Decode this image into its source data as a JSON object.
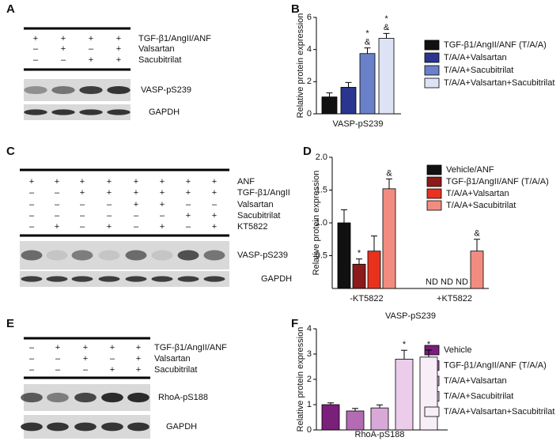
{
  "panel_letters": [
    "A",
    "B",
    "C",
    "D",
    "E",
    "F"
  ],
  "blots": [
    {
      "treatments": [
        {
          "label": "TGF-β1/AngII/ANF",
          "signs": [
            "+",
            "+",
            "+",
            "+"
          ]
        },
        {
          "label": "Valsartan",
          "signs": [
            "–",
            "+",
            "–",
            "+"
          ]
        },
        {
          "label": "Sacubitrilat",
          "signs": [
            "–",
            "–",
            "+",
            "+"
          ]
        }
      ],
      "bands": [
        "VASP-pS239",
        "GAPDH"
      ]
    },
    {
      "treatments": [
        {
          "label": "ANF",
          "signs": [
            "+",
            "+",
            "+",
            "+",
            "+",
            "+",
            "+",
            "+"
          ]
        },
        {
          "label": "TGF-β1/AngII",
          "signs": [
            "–",
            "–",
            "+",
            "+",
            "+",
            "+",
            "+",
            "+"
          ]
        },
        {
          "label": "Valsartan",
          "signs": [
            "–",
            "–",
            "–",
            "–",
            "+",
            "+",
            "–",
            "–"
          ]
        },
        {
          "label": "Sacubitrilat",
          "signs": [
            "–",
            "–",
            "–",
            "–",
            "–",
            "–",
            "+",
            "+"
          ]
        },
        {
          "label": "KT5822",
          "signs": [
            "–",
            "+",
            "–",
            "+",
            "–",
            "+",
            "–",
            "+"
          ]
        }
      ],
      "bands": [
        "VASP-pS239",
        "GAPDH"
      ]
    },
    {
      "treatments": [
        {
          "label": "TGF-β1/AngII/ANF",
          "signs": [
            "–",
            "+",
            "+",
            "+",
            "+"
          ]
        },
        {
          "label": "Valsartan",
          "signs": [
            "–",
            "–",
            "+",
            "–",
            "+"
          ]
        },
        {
          "label": "Sacubitrilat",
          "signs": [
            "–",
            "–",
            "–",
            "+",
            "+"
          ]
        }
      ],
      "bands": [
        "RhoA-pS188",
        "GAPDH"
      ]
    }
  ],
  "chart_data": [
    {
      "type": "bar",
      "y_label": "Relative protein expression",
      "categories": [
        "VASP-pS239"
      ],
      "ylim": [
        0,
        6
      ],
      "yticks": [
        0,
        2,
        4,
        6
      ],
      "series": [
        {
          "name": "TGF-β1/AngII/ANF (T/A/A)",
          "color": "#111111",
          "values": [
            1.05
          ],
          "errors": [
            0.25
          ]
        },
        {
          "name": "T/A/A+Valsartan",
          "color": "#2a3590",
          "values": [
            1.65
          ],
          "errors": [
            0.3
          ]
        },
        {
          "name": "T/A/A+Sacubitrilat",
          "color": "#6a80c8",
          "values": [
            3.75
          ],
          "errors": [
            0.35
          ],
          "annotations": [
            [
              "*",
              "&"
            ]
          ]
        },
        {
          "name": "T/A/A+Valsartan+Sacubitrilat",
          "color": "#dde3f5",
          "values": [
            4.7
          ],
          "errors": [
            0.3
          ],
          "annotations": [
            [
              "*",
              "&"
            ]
          ]
        }
      ]
    },
    {
      "type": "bar",
      "y_label": "Relative protein expression",
      "x_label": "VASP-pS239",
      "categories": [
        "-KT5822",
        "+KT5822"
      ],
      "ylim": [
        0,
        2
      ],
      "yticks": [
        {
          "value": 0.5,
          "label": "0.5"
        },
        {
          "value": 1,
          "label": "1.0"
        },
        {
          "value": 1.5,
          "label": "1.5"
        },
        {
          "value": 2,
          "label": "2.0"
        }
      ],
      "series": [
        {
          "name": "Vehicle/ANF",
          "color": "#111111",
          "values": [
            1.0,
            null
          ],
          "errors": [
            0.2,
            null
          ],
          "value_labels": [
            null,
            "ND"
          ]
        },
        {
          "name": "TGF-β1/AngII/ANF (T/A/A)",
          "color": "#8b1a1a",
          "values": [
            0.37,
            null
          ],
          "errors": [
            0.08,
            null
          ],
          "value_labels": [
            null,
            "ND"
          ],
          "annotations": [
            [
              "*"
            ],
            null
          ]
        },
        {
          "name": "T/A/A+Valsartan",
          "color": "#e8321e",
          "values": [
            0.57,
            null
          ],
          "errors": [
            0.23,
            null
          ],
          "value_labels": [
            null,
            "ND"
          ]
        },
        {
          "name": "T/A/A+Sacubitrilat",
          "color": "#f28c80",
          "values": [
            1.52,
            0.57
          ],
          "errors": [
            0.15,
            0.18
          ],
          "annotations": [
            [
              "&"
            ],
            [
              "&"
            ]
          ]
        }
      ]
    },
    {
      "type": "bar",
      "y_label": "Relative protein expression",
      "categories": [
        "RhoA-pS188"
      ],
      "ylim": [
        0,
        4
      ],
      "yticks": [
        0,
        1,
        2,
        3,
        4
      ],
      "series": [
        {
          "name": "Vehicle",
          "color": "#7a1f7a",
          "values": [
            1.0
          ],
          "errors": [
            0.07
          ]
        },
        {
          "name": "TGF-β1/AngII/ANF (T/A/A)",
          "color": "#b36bb3",
          "values": [
            0.75
          ],
          "errors": [
            0.1
          ]
        },
        {
          "name": "T/A/A+Valsartan",
          "color": "#d8a8d8",
          "values": [
            0.87
          ],
          "errors": [
            0.12
          ]
        },
        {
          "name": "T/A/A+Sacubitrilat",
          "color": "#ebcdeb",
          "values": [
            2.8
          ],
          "errors": [
            0.35
          ],
          "annotations": [
            [
              "*"
            ]
          ]
        },
        {
          "name": "T/A/A+Valsartan+Sacubitrilat",
          "color": "#f8eef8",
          "values": [
            2.88
          ],
          "errors": [
            0.28
          ],
          "annotations": [
            [
              "*"
            ]
          ]
        }
      ]
    }
  ]
}
